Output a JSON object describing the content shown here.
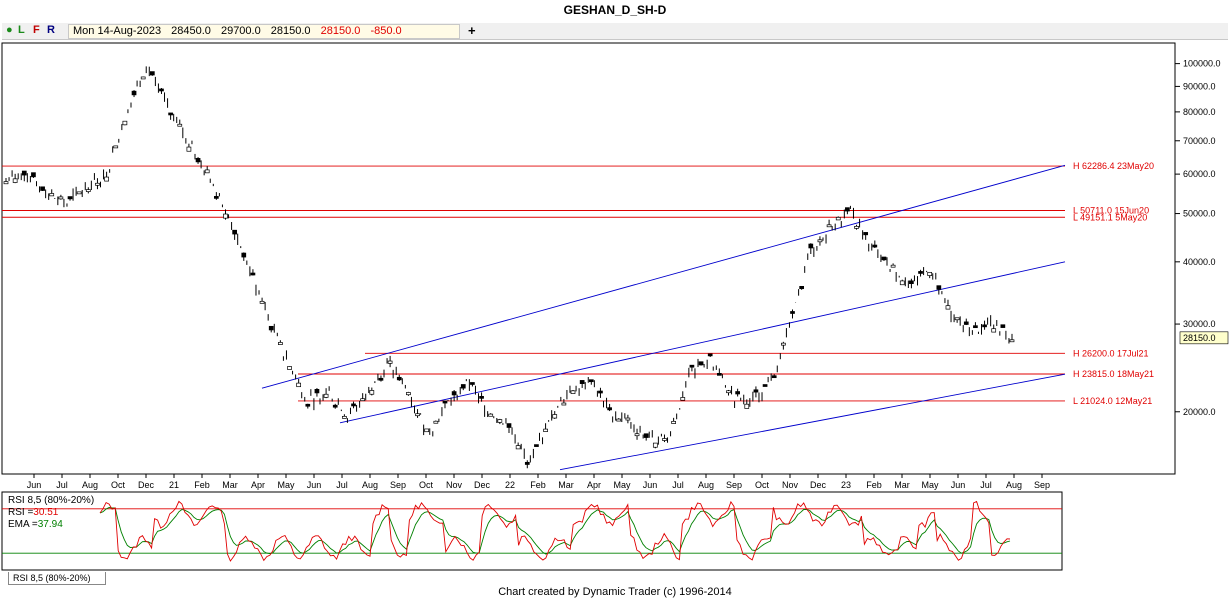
{
  "title": "GESHAN_D_SH-D",
  "toolbar": {
    "modes": [
      {
        "label": "L",
        "color": "#1a8a1a"
      },
      {
        "label": "F",
        "color": "#c00000"
      },
      {
        "label": "R",
        "color": "#000080"
      }
    ],
    "date": "Mon 14-Aug-2023",
    "open": "28450.0",
    "high": "29700.0",
    "low": "28150.0",
    "close": "28150.0",
    "change": "-850.0",
    "add_label": "+"
  },
  "chart_data": [
    {
      "type": "candlestick",
      "title": "GESHAN_D_SH-D",
      "y_scale": "log",
      "ylim": [
        15000,
        110000
      ],
      "y_ticks": [
        20000,
        30000,
        40000,
        50000,
        60000,
        70000,
        80000,
        90000,
        100000
      ],
      "y_tick_labels": [
        "20000.0",
        "30000.0",
        "40000.0",
        "50000.0",
        "60000.0",
        "70000.0",
        "80000.0",
        "90000.0",
        "100000.0"
      ],
      "last_price_label": "28150.0",
      "x_labels": [
        "Jun",
        "Jul",
        "Aug",
        "Oct",
        "Dec",
        "21",
        "Feb",
        "Mar",
        "Apr",
        "May",
        "Jun",
        "Jul",
        "Aug",
        "Sep",
        "Oct",
        "Nov",
        "Dec",
        "22",
        "Feb",
        "Mar",
        "Apr",
        "May",
        "Jun",
        "Jul",
        "Aug",
        "Sep",
        "Oct",
        "Nov",
        "Dec",
        "23",
        "Feb",
        "Mar",
        "May",
        "Jun",
        "Jul",
        "Aug",
        "Sep"
      ],
      "path_key_values": [
        58000,
        61000,
        55000,
        52000,
        57000,
        60000,
        80000,
        100000,
        82000,
        70000,
        60000,
        50000,
        40000,
        31000,
        25000,
        21000,
        22000,
        19500,
        22000,
        25000,
        22000,
        18000,
        21000,
        23000,
        20000,
        19000,
        15500,
        19000,
        22000,
        23500,
        20000,
        19000,
        17500,
        18000,
        24000,
        25500,
        21500,
        21000,
        23000,
        30000,
        42000,
        47000,
        50000,
        43000,
        39000,
        36000,
        39000,
        31000,
        29000,
        30000,
        28150
      ],
      "horizontal_lines": [
        {
          "label": "H 62286.4 23May20",
          "price": 62286.4
        },
        {
          "label": "L 50711.0 15Jun20",
          "price": 50711.0
        },
        {
          "label": "L 49151.1 5May20",
          "price": 49151.1
        },
        {
          "label": "H 26200.0 17Jul21",
          "price": 26200.0
        },
        {
          "label": "H 23815.0 18May21",
          "price": 23815.0
        },
        {
          "label": "L 21024.0 12May21",
          "price": 21024.0
        }
      ],
      "trend_lines_color": "#0000cc",
      "level_lines_color": "#e00000"
    },
    {
      "type": "line",
      "title": "RSI 8,5 (80%-20%)",
      "series": [
        {
          "name": "RSI",
          "color": "#e00000",
          "last_value": "30.51"
        },
        {
          "name": "EMA",
          "color": "#008000",
          "last_value": "37.94"
        }
      ],
      "upper_band": 80,
      "lower_band": 20,
      "ylim": [
        0,
        100
      ]
    }
  ],
  "rsi_legend": {
    "title": "RSI 8,5 (80%-20%)",
    "rsi_label": "RSI =",
    "rsi_value": "30.51",
    "ema_label": "EMA =",
    "ema_value": "37.94"
  },
  "indicator_tab": "RSI 8,5 (80%-20%)",
  "footer": "Chart created by Dynamic Trader  (c) 1996-2014"
}
